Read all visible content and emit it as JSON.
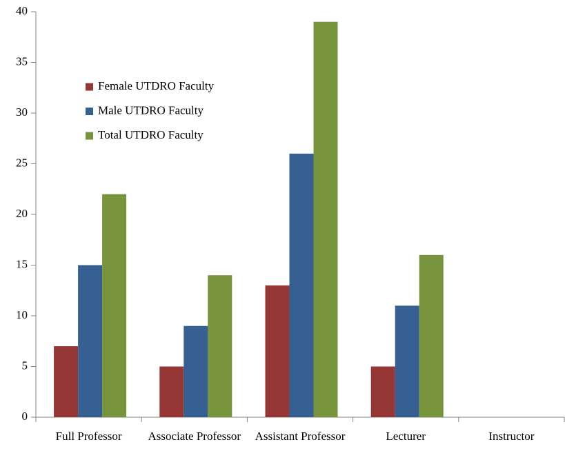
{
  "chart_data": {
    "type": "bar",
    "categories": [
      "Full Professor",
      "Associate Professor",
      "Assistant Professor",
      "Lecturer",
      "Instructor"
    ],
    "series": [
      {
        "name": "Female UTDRO Faculty",
        "color": "#953735",
        "values": [
          7,
          5,
          13,
          5,
          0
        ]
      },
      {
        "name": "Male UTDRO Faculty",
        "color": "#376092",
        "values": [
          15,
          9,
          26,
          11,
          0
        ]
      },
      {
        "name": "Total UTDRO Faculty",
        "color": "#77933c",
        "values": [
          22,
          14,
          39,
          16,
          0
        ]
      }
    ],
    "ylim": [
      0,
      40
    ],
    "yticks": [
      0,
      5,
      10,
      15,
      20,
      25,
      30,
      35,
      40
    ],
    "grid": false,
    "legend": "upper left"
  }
}
